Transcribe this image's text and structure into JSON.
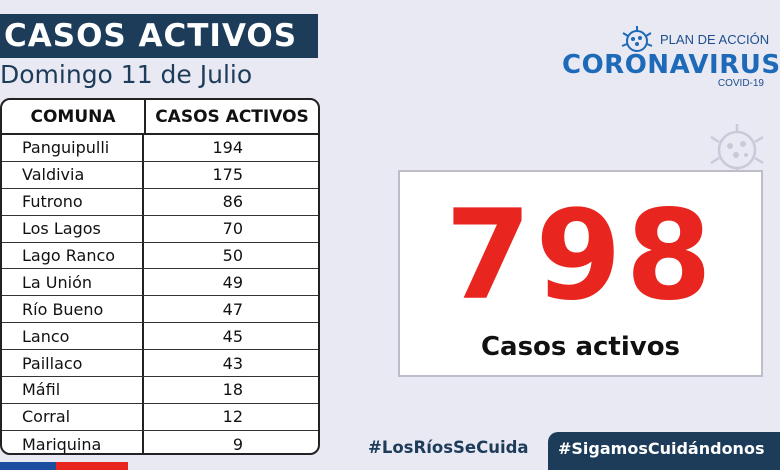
{
  "header": {
    "title": "CASOS ACTIVOS",
    "date": "Domingo 11 de Julio"
  },
  "table": {
    "columns": [
      "COMUNA",
      "CASOS ACTIVOS"
    ],
    "rows": [
      {
        "comuna": "Panguipulli",
        "casos": "194"
      },
      {
        "comuna": "Valdivia",
        "casos": "175"
      },
      {
        "comuna": "Futrono",
        "casos": "86"
      },
      {
        "comuna": "Los Lagos",
        "casos": "70"
      },
      {
        "comuna": "Lago Ranco",
        "casos": "50"
      },
      {
        "comuna": "La Unión",
        "casos": "49"
      },
      {
        "comuna": "Río Bueno",
        "casos": "47"
      },
      {
        "comuna": "Lanco",
        "casos": "45"
      },
      {
        "comuna": "Paillaco",
        "casos": "43"
      },
      {
        "comuna": "Máfil",
        "casos": "18"
      },
      {
        "comuna": "Corral",
        "casos": "12"
      },
      {
        "comuna": "Mariquina",
        "casos": "9"
      }
    ]
  },
  "logo": {
    "plan": "PLAN DE ACCIÓN",
    "name": "CORONAVIRUS",
    "sub": "COVID-19"
  },
  "summary": {
    "total": "798",
    "label": "Casos activos"
  },
  "footer": {
    "hashtag_1": "#LosRíosSeCuida",
    "hashtag_2": "#SigamosCuidándonos"
  },
  "colors": {
    "navy": "#1d3c5a",
    "accent_red": "#e8251f",
    "background": "#e9e9f4"
  },
  "icons": [
    "virus-icon"
  ]
}
